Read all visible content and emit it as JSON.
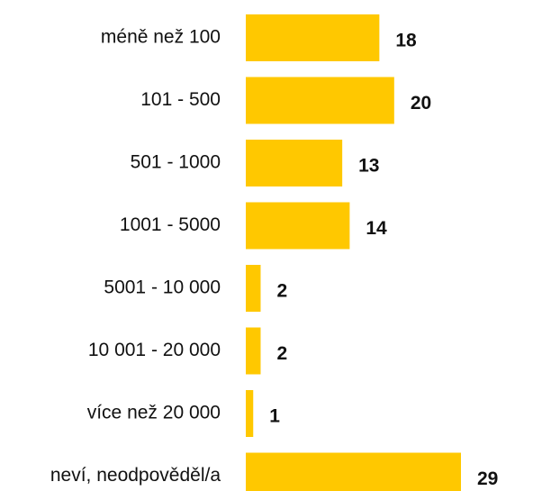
{
  "chart_data": {
    "type": "bar",
    "orientation": "horizontal",
    "categories": [
      "méně než 100",
      "101 - 500",
      "501 - 1000",
      "1001 - 5000",
      "5001 - 10 000",
      "10 001 - 20 000",
      "více než 20 000",
      "neví, neodpověděl/a"
    ],
    "values": [
      18,
      20,
      13,
      14,
      2,
      2,
      1,
      29
    ],
    "color": "#ffc800"
  }
}
